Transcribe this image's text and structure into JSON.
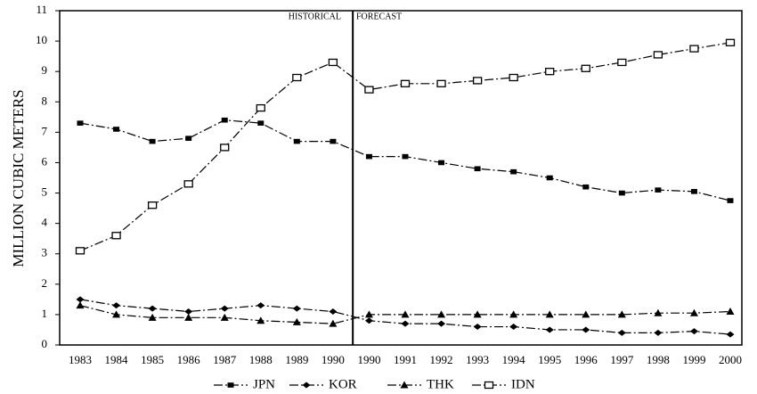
{
  "chart_data": {
    "type": "line",
    "ylabel": "MILLION CUBIC METERS",
    "annotations": [
      "HISTORICAL",
      "FORECAST"
    ],
    "categories": [
      "1983",
      "1984",
      "1985",
      "1986",
      "1987",
      "1988",
      "1989",
      "1990",
      "1990",
      "1991",
      "1992",
      "1993",
      "1994",
      "1995",
      "1996",
      "1997",
      "1998",
      "1999",
      "2000"
    ],
    "series": [
      {
        "name": "JPN",
        "color": "#000000",
        "marker": "filled-square",
        "values": [
          7.3,
          7.1,
          6.7,
          6.8,
          7.4,
          7.3,
          6.7,
          6.7,
          6.2,
          6.2,
          6.0,
          5.8,
          5.7,
          5.5,
          5.2,
          5.0,
          5.1,
          5.05,
          4.75
        ]
      },
      {
        "name": "KOR",
        "color": "#000000",
        "marker": "diamond",
        "values": [
          1.5,
          1.3,
          1.2,
          1.1,
          1.2,
          1.3,
          1.2,
          1.1,
          0.8,
          0.7,
          0.7,
          0.6,
          0.6,
          0.5,
          0.5,
          0.4,
          0.4,
          0.45,
          0.35
        ]
      },
      {
        "name": "THK",
        "color": "#000000",
        "marker": "triangle",
        "values": [
          1.3,
          1.0,
          0.9,
          0.9,
          0.9,
          0.8,
          0.75,
          0.7,
          1.0,
          1.0,
          1.0,
          1.0,
          1.0,
          1.0,
          1.0,
          1.0,
          1.05,
          1.05,
          1.1
        ]
      },
      {
        "name": "IDN",
        "color": "#000000",
        "marker": "open-square",
        "values": [
          3.1,
          3.6,
          4.6,
          5.3,
          6.5,
          7.8,
          8.8,
          9.3,
          8.4,
          8.6,
          8.6,
          8.7,
          8.8,
          9.0,
          9.1,
          9.3,
          9.55,
          9.75,
          9.95
        ]
      }
    ],
    "ylim": [
      0,
      11
    ],
    "yticks": [
      0,
      1,
      2,
      3,
      4,
      5,
      6,
      7,
      8,
      9,
      10,
      11
    ],
    "grid": false
  }
}
